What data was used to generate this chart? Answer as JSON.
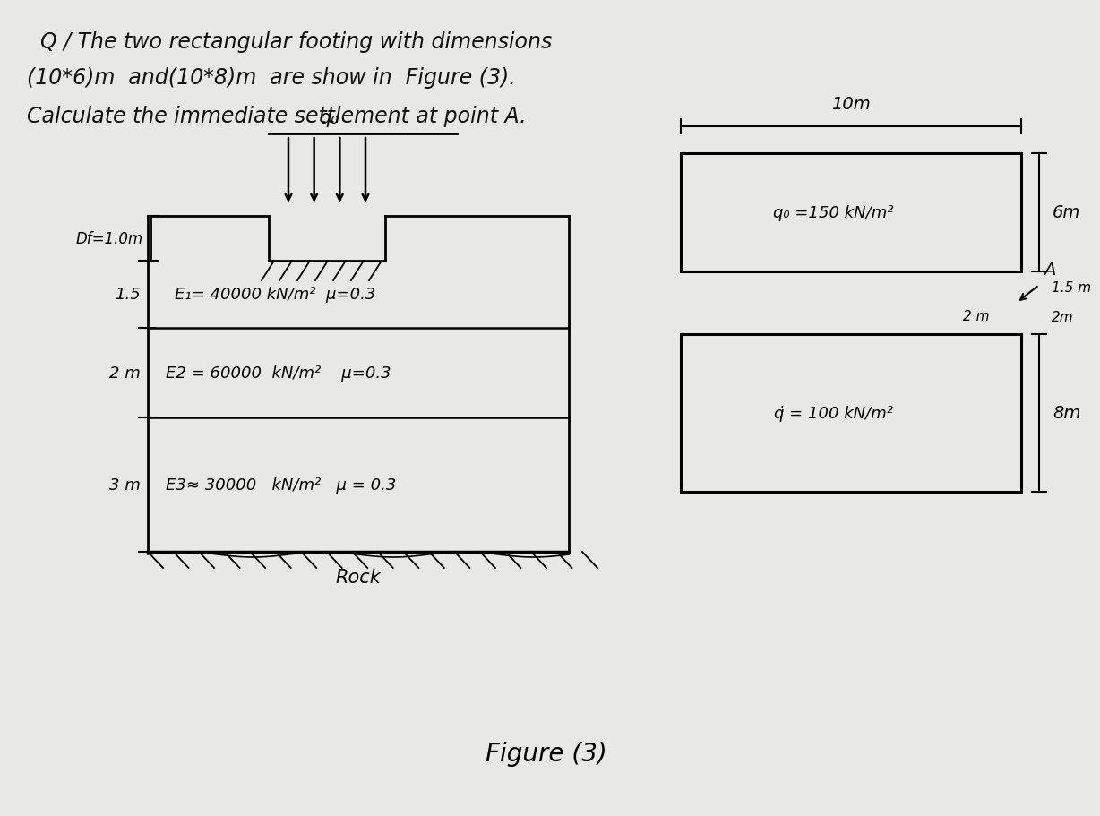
{
  "bg_color": "#e8e8e6",
  "title_line1": "Q / The two rectangular footing with dimensions",
  "title_line2": "(10*6)m  and(10*8)m  are show in  Figure (3).",
  "title_line3": "Calculate the immediate settlement at point A.",
  "figure_label": "Figure (3)",
  "left_diagram": {
    "df_label": "Df=1.0m",
    "layer1_label": "1.5",
    "layer1_text": "E₁= 40000 kN/m²  μ=0.3",
    "layer2_label": "2 m",
    "layer2_text": "E2 = 60000  kN/m²    μ=0.3",
    "layer3_label": "3 m",
    "layer3_text": "E3≈ 30000   kN/m²   μ = 0.3",
    "rock_label": "Rock",
    "q0_label": "q₀"
  },
  "right_diagram": {
    "width_label": "10m",
    "rect1_label": "q₀ =150 kN/m²",
    "rect1_height_label": "6m",
    "point_label": "A",
    "dist1_label": "1.5 m",
    "dist2_label": "2m",
    "dist3_label": "2 m",
    "rect2_label": "q⁠̇ = 100 kN/m²",
    "rect2_height_label": "8m"
  }
}
